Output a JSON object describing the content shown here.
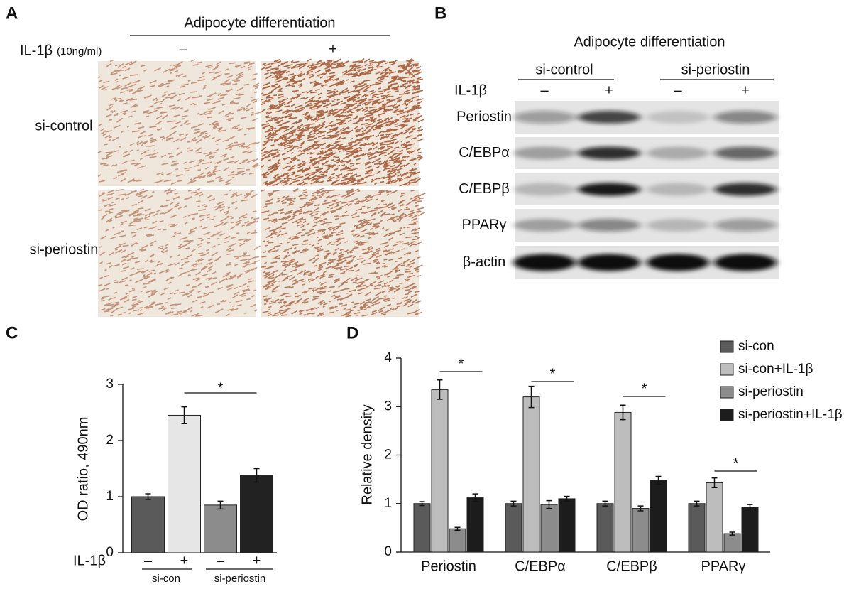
{
  "panel_a": {
    "letter": "A",
    "title": "Adipocyte differentiation",
    "treatment": "IL-1β",
    "dose": "(10ng/ml)",
    "conditions": [
      "–",
      "+"
    ],
    "rows": [
      "si-control",
      "si-periostin"
    ]
  },
  "panel_b": {
    "letter": "B",
    "title": "Adipocyte differentiation",
    "groups": [
      "si-control",
      "si-periostin"
    ],
    "treatment": "IL-1β",
    "conditions": [
      "–",
      "+",
      "–",
      "+"
    ],
    "proteins": [
      "Periostin",
      "C/EBPα",
      "C/EBPβ",
      "PPARγ",
      "β-actin"
    ]
  },
  "chart_data": [
    {
      "type": "bar",
      "letter": "C",
      "ylabel": "OD ratio, 490nm",
      "x_label": "IL-1β",
      "categories": [
        "–",
        "+",
        "–",
        "+"
      ],
      "groups": [
        "si-con",
        "si-periostin"
      ],
      "values": [
        1.0,
        2.45,
        0.85,
        1.38
      ],
      "errors": [
        0.05,
        0.15,
        0.07,
        0.12
      ],
      "colors": [
        "#5a5a5a",
        "#e6e6e6",
        "#8c8c8c",
        "#222222"
      ],
      "ylim": [
        0,
        3
      ],
      "yticks": [
        0,
        1,
        2,
        3
      ],
      "significance": "*"
    },
    {
      "type": "grouped_bar",
      "letter": "D",
      "ylabel": "Relative density",
      "categories": [
        "Periostin",
        "C/EBPα",
        "C/EBPβ",
        "PPARγ"
      ],
      "series": [
        {
          "name": "si-con",
          "color": "#5a5a5a",
          "values": [
            1,
            1,
            1,
            1
          ],
          "errors": [
            0.04,
            0.05,
            0.05,
            0.05
          ]
        },
        {
          "name": "si-con+IL-1β",
          "color": "#bdbdbd",
          "values": [
            3.35,
            3.2,
            2.88,
            1.43
          ],
          "errors": [
            0.2,
            0.22,
            0.15,
            0.1
          ]
        },
        {
          "name": "si-periostin",
          "color": "#8c8c8c",
          "values": [
            0.48,
            0.98,
            0.9,
            0.38
          ],
          "errors": [
            0.03,
            0.08,
            0.05,
            0.03
          ]
        },
        {
          "name": "si-periostin+IL-1β",
          "color": "#1c1c1c",
          "values": [
            1.12,
            1.1,
            1.48,
            0.93
          ],
          "errors": [
            0.08,
            0.05,
            0.08,
            0.05
          ]
        }
      ],
      "ylim": [
        0,
        4
      ],
      "yticks": [
        0,
        1,
        2,
        3,
        4
      ],
      "significance": [
        "*",
        "*",
        "*",
        "*"
      ],
      "legend": "top-right"
    }
  ]
}
